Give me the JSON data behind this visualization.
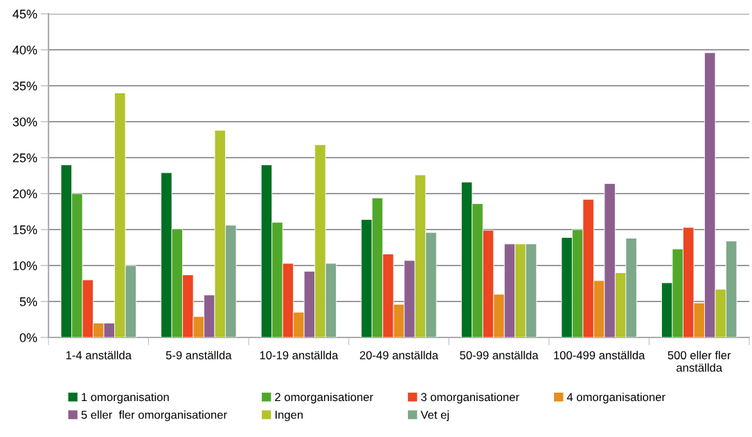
{
  "chart_data": {
    "type": "bar",
    "categories": [
      "1-4 anställda",
      "5-9 anställda",
      "10-19 anställda",
      "20-49 anställda",
      "50-99 anställda",
      "100-499 anställda",
      "500 eller fler\nanställda"
    ],
    "series": [
      {
        "name": "1 omorganisation",
        "color": "#007022",
        "values": [
          24,
          22.9,
          24,
          16.4,
          21.6,
          13.9,
          7.6
        ]
      },
      {
        "name": "2 omorganisationer",
        "color": "#50a82b",
        "values": [
          20,
          15.1,
          16,
          19.4,
          18.6,
          15,
          12.3
        ]
      },
      {
        "name": "3 omorganisationer",
        "color": "#ec4622",
        "values": [
          8,
          8.7,
          10.3,
          11.6,
          14.9,
          19.2,
          15.3
        ]
      },
      {
        "name": "4 omorganisationer",
        "color": "#e58d1e",
        "values": [
          2,
          2.9,
          3.5,
          4.6,
          6,
          7.9,
          4.8
        ]
      },
      {
        "name": "5 eller  fler omorganisationer",
        "color": "#8c5f8f",
        "values": [
          2,
          5.9,
          9.2,
          10.7,
          13,
          21.4,
          39.6
        ]
      },
      {
        "name": "Ingen",
        "color": "#b2c32c",
        "values": [
          34,
          28.8,
          26.8,
          22.6,
          13,
          9,
          6.7
        ]
      },
      {
        "name": "Vet ej",
        "color": "#7da889",
        "values": [
          10,
          15.6,
          10.3,
          14.6,
          13,
          13.8,
          13.4
        ]
      }
    ],
    "ylim": [
      0,
      45
    ],
    "yticks": [
      {
        "value": 0,
        "label": "0%"
      },
      {
        "value": 5,
        "label": "5%"
      },
      {
        "value": 10,
        "label": "10%"
      },
      {
        "value": 15,
        "label": "15%"
      },
      {
        "value": 20,
        "label": "20%"
      },
      {
        "value": 25,
        "label": "25%"
      },
      {
        "value": 30,
        "label": "30%"
      },
      {
        "value": 35,
        "label": "35%"
      },
      {
        "value": 40,
        "label": "40%"
      },
      {
        "value": 45,
        "label": "45%"
      }
    ],
    "grid": "y",
    "legend": "bottom"
  }
}
